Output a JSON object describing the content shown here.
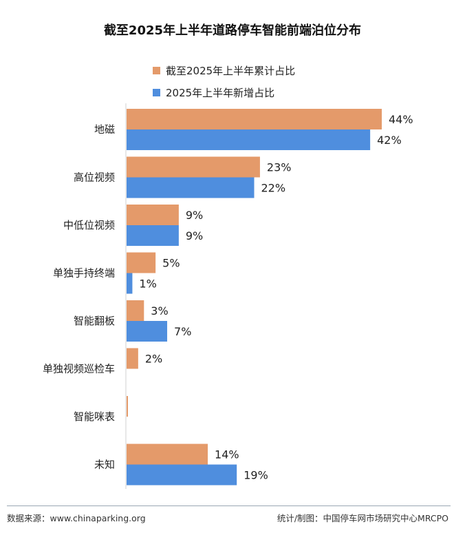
{
  "title": "截至2025年上半年道路停车智能前端泊位分布",
  "footer": {
    "source": "数据来源：www.chinaparking.org",
    "credit": "统计/制图：中国停车网市场研究中心MRCPO"
  },
  "chart_data": {
    "type": "bar",
    "orientation": "horizontal",
    "categories": [
      "地磁",
      "高位视频",
      "中低位视频",
      "单独手持终端",
      "智能翻板",
      "单独视频巡检车",
      "智能咪表",
      "未知"
    ],
    "series": [
      {
        "name": "截至2025年上半年累计占比",
        "color": "#E49A6A",
        "values": [
          44,
          23,
          9,
          5,
          3,
          2,
          0.2,
          14
        ],
        "labels": [
          "44%",
          "23%",
          "9%",
          "5%",
          "3%",
          "2%",
          "",
          "14%"
        ]
      },
      {
        "name": "2025年上半年新增占比",
        "color": "#4F8EDE",
        "values": [
          42,
          22,
          9,
          1,
          7,
          0,
          0,
          19
        ],
        "labels": [
          "42%",
          "22%",
          "9%",
          "1%",
          "7%",
          "",
          "",
          "19%"
        ]
      }
    ],
    "xlim": [
      0,
      44
    ],
    "legend_position": "top",
    "grid": false
  }
}
